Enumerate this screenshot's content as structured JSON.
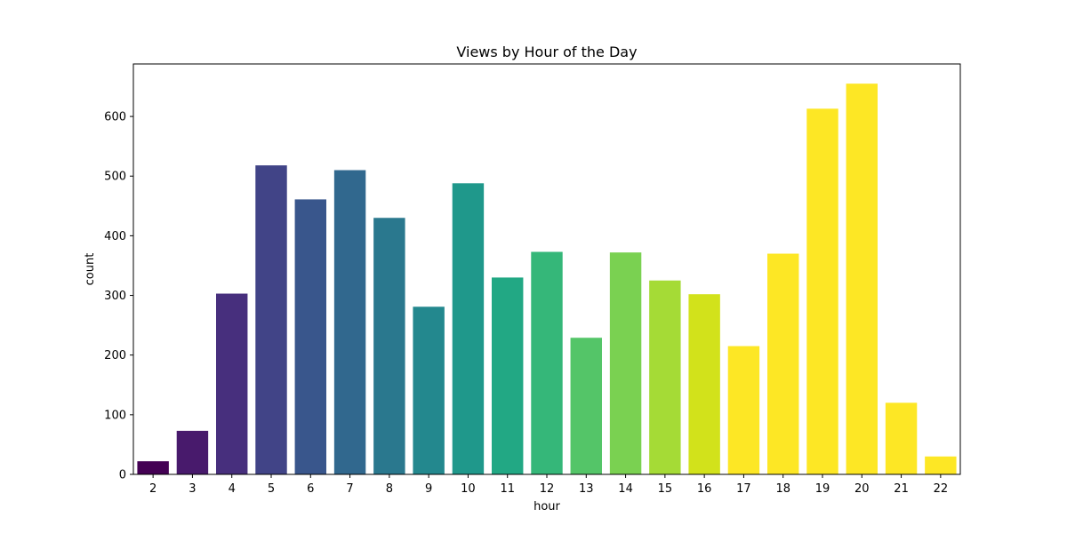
{
  "chart_data": {
    "type": "bar",
    "title": "Views by Hour of the Day",
    "xlabel": "hour",
    "ylabel": "count",
    "categories": [
      "2",
      "3",
      "4",
      "5",
      "6",
      "7",
      "8",
      "9",
      "10",
      "11",
      "12",
      "13",
      "14",
      "15",
      "16",
      "17",
      "18",
      "19",
      "20",
      "21",
      "22"
    ],
    "values": [
      22,
      73,
      303,
      518,
      461,
      510,
      430,
      281,
      488,
      330,
      373,
      229,
      372,
      325,
      302,
      215,
      370,
      613,
      655,
      120,
      30
    ],
    "colors": [
      "#440154",
      "#481a6c",
      "#472f7d",
      "#414487",
      "#39568c",
      "#31688e",
      "#2a788e",
      "#23888e",
      "#1f988b",
      "#22a884",
      "#35b779",
      "#54c568",
      "#7ad151",
      "#a5db36",
      "#d2e21b",
      "#fde725",
      "#fde725",
      "#fde725",
      "#fde725",
      "#fde725",
      "#fde725"
    ],
    "ylim": [
      0,
      688
    ],
    "yticks": [
      0,
      100,
      200,
      300,
      400,
      500,
      600
    ],
    "grid": false,
    "legend": false
  }
}
